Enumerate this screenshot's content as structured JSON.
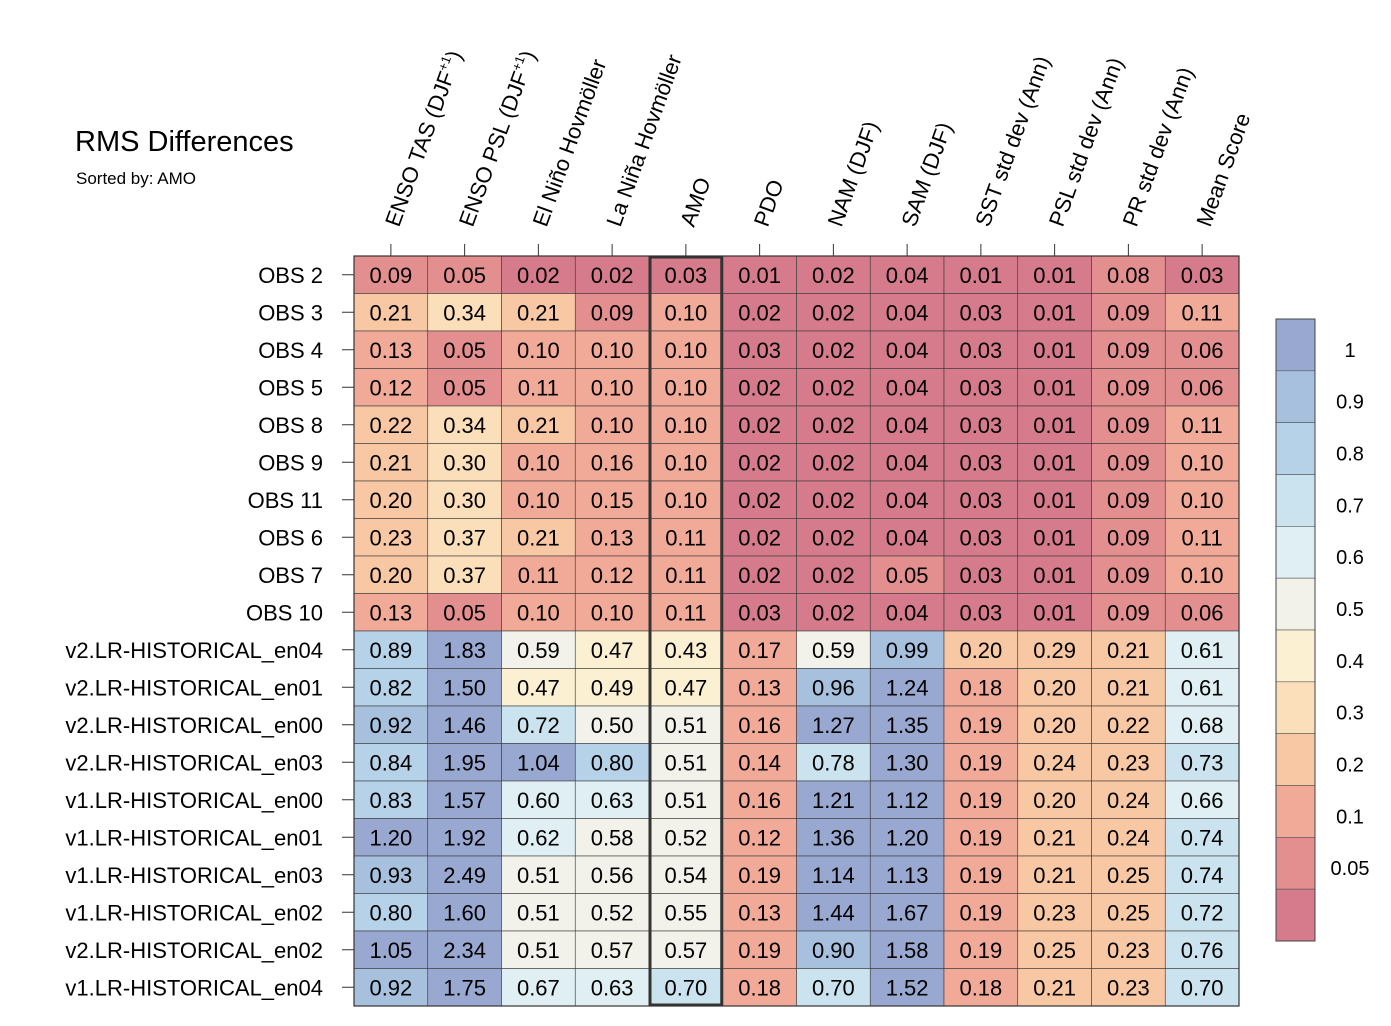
{
  "title": "RMS Differences",
  "subtitle": "Sorted by: AMO",
  "chart_data": {
    "type": "heatmap",
    "title": "RMS Differences",
    "subtitle": "Sorted by: AMO",
    "sort_column": "AMO",
    "columns": [
      {
        "text": "ENSO TAS (DJF",
        "sup": "+1",
        "close": ")"
      },
      {
        "text": "ENSO PSL (DJF",
        "sup": "+1",
        "close": ")"
      },
      {
        "text": "El Niño Hovmöller",
        "sup": "",
        "close": ""
      },
      {
        "text": "La Niña Hovmöller",
        "sup": "",
        "close": ""
      },
      {
        "text": "AMO",
        "sup": "",
        "close": ""
      },
      {
        "text": "PDO",
        "sup": "",
        "close": ""
      },
      {
        "text": "NAM (DJF)",
        "sup": "",
        "close": ""
      },
      {
        "text": "SAM (DJF)",
        "sup": "",
        "close": ""
      },
      {
        "text": "SST std dev (Ann)",
        "sup": "",
        "close": ""
      },
      {
        "text": "PSL std dev (Ann)",
        "sup": "",
        "close": ""
      },
      {
        "text": "PR std dev (Ann)",
        "sup": "",
        "close": ""
      },
      {
        "text": "Mean Score",
        "sup": "",
        "close": ""
      }
    ],
    "rows": [
      "OBS 2",
      "OBS 3",
      "OBS 4",
      "OBS 5",
      "OBS 8",
      "OBS 9",
      "OBS 11",
      "OBS 6",
      "OBS 7",
      "OBS 10",
      "v2.LR-HISTORICAL_en04",
      "v2.LR-HISTORICAL_en01",
      "v2.LR-HISTORICAL_en00",
      "v2.LR-HISTORICAL_en03",
      "v1.LR-HISTORICAL_en00",
      "v1.LR-HISTORICAL_en01",
      "v1.LR-HISTORICAL_en03",
      "v1.LR-HISTORICAL_en02",
      "v2.LR-HISTORICAL_en02",
      "v1.LR-HISTORICAL_en04"
    ],
    "values": [
      [
        "0.09",
        "0.05",
        "0.02",
        "0.02",
        "0.03",
        "0.01",
        "0.02",
        "0.04",
        "0.01",
        "0.01",
        "0.08",
        "0.03"
      ],
      [
        "0.21",
        "0.34",
        "0.21",
        "0.09",
        "0.10",
        "0.02",
        "0.02",
        "0.04",
        "0.03",
        "0.01",
        "0.09",
        "0.11"
      ],
      [
        "0.13",
        "0.05",
        "0.10",
        "0.10",
        "0.10",
        "0.03",
        "0.02",
        "0.04",
        "0.03",
        "0.01",
        "0.09",
        "0.06"
      ],
      [
        "0.12",
        "0.05",
        "0.11",
        "0.10",
        "0.10",
        "0.02",
        "0.02",
        "0.04",
        "0.03",
        "0.01",
        "0.09",
        "0.06"
      ],
      [
        "0.22",
        "0.34",
        "0.21",
        "0.10",
        "0.10",
        "0.02",
        "0.02",
        "0.04",
        "0.03",
        "0.01",
        "0.09",
        "0.11"
      ],
      [
        "0.21",
        "0.30",
        "0.10",
        "0.16",
        "0.10",
        "0.02",
        "0.02",
        "0.04",
        "0.03",
        "0.01",
        "0.09",
        "0.10"
      ],
      [
        "0.20",
        "0.30",
        "0.10",
        "0.15",
        "0.10",
        "0.02",
        "0.02",
        "0.04",
        "0.03",
        "0.01",
        "0.09",
        "0.10"
      ],
      [
        "0.23",
        "0.37",
        "0.21",
        "0.13",
        "0.11",
        "0.02",
        "0.02",
        "0.04",
        "0.03",
        "0.01",
        "0.09",
        "0.11"
      ],
      [
        "0.20",
        "0.37",
        "0.11",
        "0.12",
        "0.11",
        "0.02",
        "0.02",
        "0.05",
        "0.03",
        "0.01",
        "0.09",
        "0.10"
      ],
      [
        "0.13",
        "0.05",
        "0.10",
        "0.10",
        "0.11",
        "0.03",
        "0.02",
        "0.04",
        "0.03",
        "0.01",
        "0.09",
        "0.06"
      ],
      [
        "0.89",
        "1.83",
        "0.59",
        "0.47",
        "0.43",
        "0.17",
        "0.59",
        "0.99",
        "0.20",
        "0.29",
        "0.21",
        "0.61"
      ],
      [
        "0.82",
        "1.50",
        "0.47",
        "0.49",
        "0.47",
        "0.13",
        "0.96",
        "1.24",
        "0.18",
        "0.20",
        "0.21",
        "0.61"
      ],
      [
        "0.92",
        "1.46",
        "0.72",
        "0.50",
        "0.51",
        "0.16",
        "1.27",
        "1.35",
        "0.19",
        "0.20",
        "0.22",
        "0.68"
      ],
      [
        "0.84",
        "1.95",
        "1.04",
        "0.80",
        "0.51",
        "0.14",
        "0.78",
        "1.30",
        "0.19",
        "0.24",
        "0.23",
        "0.73"
      ],
      [
        "0.83",
        "1.57",
        "0.60",
        "0.63",
        "0.51",
        "0.16",
        "1.21",
        "1.12",
        "0.19",
        "0.20",
        "0.24",
        "0.66"
      ],
      [
        "1.20",
        "1.92",
        "0.62",
        "0.58",
        "0.52",
        "0.12",
        "1.36",
        "1.20",
        "0.19",
        "0.21",
        "0.24",
        "0.74"
      ],
      [
        "0.93",
        "2.49",
        "0.51",
        "0.56",
        "0.54",
        "0.19",
        "1.14",
        "1.13",
        "0.19",
        "0.21",
        "0.25",
        "0.74"
      ],
      [
        "0.80",
        "1.60",
        "0.51",
        "0.52",
        "0.55",
        "0.13",
        "1.44",
        "1.67",
        "0.19",
        "0.23",
        "0.25",
        "0.72"
      ],
      [
        "1.05",
        "2.34",
        "0.51",
        "0.57",
        "0.57",
        "0.19",
        "0.90",
        "1.58",
        "0.19",
        "0.25",
        "0.23",
        "0.76"
      ],
      [
        "0.92",
        "1.75",
        "0.67",
        "0.63",
        "0.70",
        "0.18",
        "0.70",
        "1.52",
        "0.18",
        "0.21",
        "0.23",
        "0.70"
      ]
    ],
    "colorbar": {
      "ticks": [
        "1",
        "0.9",
        "0.8",
        "0.7",
        "0.6",
        "0.5",
        "0.4",
        "0.3",
        "0.2",
        "0.1",
        "0.05"
      ],
      "bands": [
        {
          "min": 1.0,
          "color": "#99a8d0"
        },
        {
          "min": 0.9,
          "color": "#a6c0de"
        },
        {
          "min": 0.8,
          "color": "#b6d2e8"
        },
        {
          "min": 0.7,
          "color": "#cbe3ef"
        },
        {
          "min": 0.6,
          "color": "#e0eff3"
        },
        {
          "min": 0.5,
          "color": "#f2f2ea"
        },
        {
          "min": 0.4,
          "color": "#fcf0d2"
        },
        {
          "min": 0.3,
          "color": "#fbdfba"
        },
        {
          "min": 0.2,
          "color": "#f8c7a4"
        },
        {
          "min": 0.1,
          "color": "#f1aa98"
        },
        {
          "min": 0.05,
          "color": "#e48f8f"
        },
        {
          "min": 0.0,
          "color": "#d57b8b"
        }
      ]
    },
    "grid": true,
    "legend": "right"
  }
}
